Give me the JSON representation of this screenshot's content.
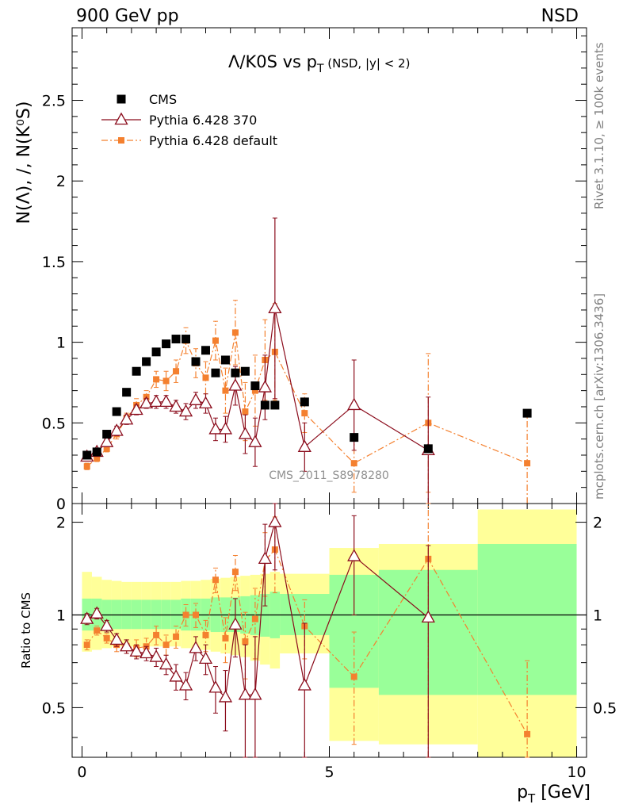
{
  "header": {
    "left": "900 GeV pp",
    "right": "NSD"
  },
  "side_labels": {
    "rivet": "Rivet 3.1.10, ≥ 100k events",
    "mcplots": "mcplots.cern.ch [arXiv:1306.3436]"
  },
  "watermark": "CMS_2011_S8978280",
  "main_title": {
    "part1": "Λ/K0S vs p",
    "sub": "T",
    "part2": " (NSD, |y| < 2)"
  },
  "y_label_main": "N(Λ), /, N(K⁰S)",
  "y_label_ratio": "Ratio to CMS",
  "x_label": {
    "main": "p",
    "sub": "T",
    "rest": " [GeV]"
  },
  "colors": {
    "data": "#000000",
    "pythia370": "#8b0c1c",
    "pythiadefault": "#f4802f",
    "band_inner": "#99ff99",
    "band_outer": "#ffff99"
  },
  "chart_data": [
    {
      "type": "scatter",
      "panel": "main",
      "title": "Λ/K0S vs pT (NSD, |y| < 2)",
      "xlabel": "pT [GeV]",
      "ylabel": "N(Λ), /, N(K0S)",
      "xlim": [
        -0.2,
        10.2
      ],
      "ylim": [
        0,
        2.95
      ],
      "y_ticks": [
        0,
        0.5,
        1,
        1.5,
        2,
        2.5
      ],
      "y_tick_labels": [
        "0",
        "0.5",
        "1",
        "1.5",
        "2",
        "2.5"
      ],
      "legend_position": "top-left",
      "series": [
        {
          "name": "CMS",
          "style": "data",
          "x": [
            0.1,
            0.3,
            0.5,
            0.7,
            0.9,
            1.1,
            1.3,
            1.5,
            1.7,
            1.9,
            2.1,
            2.3,
            2.5,
            2.7,
            2.9,
            3.1,
            3.3,
            3.5,
            3.7,
            3.9,
            4.5,
            5.5,
            7.0,
            9.0
          ],
          "values": [
            0.3,
            0.32,
            0.43,
            0.57,
            0.69,
            0.82,
            0.88,
            0.94,
            0.99,
            1.02,
            1.02,
            0.88,
            0.95,
            0.81,
            0.89,
            0.81,
            0.82,
            0.73,
            0.61,
            0.61,
            0.63,
            0.41,
            0.34,
            0.56
          ]
        },
        {
          "name": "Pythia 6.428 370",
          "style": "pythia370",
          "x": [
            0.1,
            0.3,
            0.5,
            0.7,
            0.9,
            1.1,
            1.3,
            1.5,
            1.7,
            1.9,
            2.1,
            2.3,
            2.5,
            2.7,
            2.9,
            3.1,
            3.3,
            3.5,
            3.7,
            3.9,
            4.5,
            5.5,
            7.0
          ],
          "values": [
            0.29,
            0.32,
            0.38,
            0.45,
            0.52,
            0.58,
            0.62,
            0.63,
            0.63,
            0.6,
            0.57,
            0.64,
            0.62,
            0.46,
            0.46,
            0.73,
            0.43,
            0.38,
            0.72,
            1.21,
            0.35,
            0.61,
            0.33
          ],
          "errors": [
            0.02,
            0.02,
            0.02,
            0.03,
            0.03,
            0.03,
            0.03,
            0.04,
            0.04,
            0.04,
            0.05,
            0.05,
            0.06,
            0.07,
            0.08,
            0.12,
            0.12,
            0.15,
            0.2,
            0.56,
            0.15,
            0.28,
            0.33
          ]
        },
        {
          "name": "Pythia 6.428 default",
          "style": "pythiadefault",
          "x": [
            0.1,
            0.3,
            0.5,
            0.7,
            0.9,
            1.1,
            1.3,
            1.5,
            1.7,
            1.9,
            2.1,
            2.3,
            2.5,
            2.7,
            2.9,
            3.1,
            3.3,
            3.5,
            3.7,
            3.9,
            4.5,
            5.5,
            7.0,
            9.0
          ],
          "values": [
            0.23,
            0.28,
            0.34,
            0.43,
            0.53,
            0.61,
            0.66,
            0.77,
            0.76,
            0.82,
            1.01,
            0.87,
            0.78,
            1.01,
            0.7,
            1.06,
            0.57,
            0.7,
            0.89,
            0.94,
            0.56,
            0.25,
            0.5,
            0.25
          ],
          "errors": [
            0.02,
            0.02,
            0.02,
            0.03,
            0.03,
            0.04,
            0.04,
            0.05,
            0.06,
            0.07,
            0.08,
            0.09,
            0.1,
            0.12,
            0.14,
            0.2,
            0.18,
            0.22,
            0.25,
            0.3,
            0.12,
            0.18,
            0.43,
            0.3
          ]
        }
      ]
    },
    {
      "type": "scatter",
      "panel": "ratio",
      "ylabel": "Ratio to CMS",
      "xlabel": "pT [GeV]",
      "xlim": [
        -0.2,
        10.2
      ],
      "ylim": [
        0.345,
        2.3
      ],
      "y_scale": "log",
      "y_ticks": [
        0.5,
        1,
        2
      ],
      "y_tick_labels": [
        "0.5",
        "1",
        "2"
      ],
      "x_ticks": [
        0,
        5,
        10
      ],
      "x_tick_labels": [
        "0",
        "5",
        "10"
      ],
      "reference_line": 1,
      "bands": {
        "edges": [
          0,
          0.2,
          0.4,
          0.6,
          0.8,
          1.0,
          1.2,
          1.4,
          1.6,
          1.8,
          2.0,
          2.2,
          2.4,
          2.6,
          2.8,
          3.0,
          3.2,
          3.4,
          3.6,
          3.8,
          4.0,
          5.0,
          6.0,
          8.0,
          10.0
        ],
        "inner_lo": [
          0.89,
          0.89,
          0.9,
          0.9,
          0.9,
          0.9,
          0.9,
          0.9,
          0.9,
          0.9,
          0.89,
          0.89,
          0.89,
          0.88,
          0.88,
          0.88,
          0.87,
          0.86,
          0.85,
          0.84,
          0.86,
          0.58,
          0.55,
          0.55
        ],
        "inner_hi": [
          1.13,
          1.13,
          1.12,
          1.12,
          1.12,
          1.12,
          1.12,
          1.12,
          1.12,
          1.12,
          1.13,
          1.13,
          1.13,
          1.14,
          1.14,
          1.14,
          1.15,
          1.16,
          1.17,
          1.19,
          1.17,
          1.35,
          1.4,
          1.7
        ],
        "outer_lo": [
          0.76,
          0.77,
          0.78,
          0.79,
          0.79,
          0.79,
          0.79,
          0.79,
          0.79,
          0.79,
          0.78,
          0.78,
          0.77,
          0.76,
          0.75,
          0.74,
          0.73,
          0.71,
          0.69,
          0.67,
          0.75,
          0.39,
          0.38,
          0.34
        ],
        "outer_hi": [
          1.38,
          1.33,
          1.3,
          1.29,
          1.28,
          1.28,
          1.28,
          1.28,
          1.28,
          1.28,
          1.29,
          1.29,
          1.3,
          1.31,
          1.32,
          1.33,
          1.34,
          1.35,
          1.36,
          1.38,
          1.36,
          1.65,
          1.7,
          2.2
        ]
      },
      "series": [
        {
          "name": "Pythia 6.428 370",
          "style": "pythia370",
          "x": [
            0.1,
            0.3,
            0.5,
            0.7,
            0.9,
            1.1,
            1.3,
            1.5,
            1.7,
            1.9,
            2.1,
            2.3,
            2.5,
            2.7,
            2.9,
            3.1,
            3.3,
            3.5,
            3.7,
            3.9,
            4.5,
            5.5,
            7.0
          ],
          "values": [
            0.97,
            1.01,
            0.92,
            0.83,
            0.79,
            0.76,
            0.75,
            0.73,
            0.69,
            0.63,
            0.59,
            0.78,
            0.72,
            0.58,
            0.54,
            0.93,
            0.55,
            0.55,
            1.52,
            2.0,
            0.59,
            1.55,
            0.98
          ],
          "errors": [
            0.04,
            0.04,
            0.04,
            0.04,
            0.04,
            0.04,
            0.04,
            0.05,
            0.05,
            0.06,
            0.06,
            0.07,
            0.08,
            0.1,
            0.12,
            0.2,
            0.25,
            0.3,
            0.45,
            0.6,
            0.35,
            0.55,
            0.7
          ]
        },
        {
          "name": "Pythia 6.428 default",
          "style": "pythiadefault",
          "x": [
            0.1,
            0.3,
            0.5,
            0.7,
            0.9,
            1.1,
            1.3,
            1.5,
            1.7,
            1.9,
            2.1,
            2.3,
            2.5,
            2.7,
            2.9,
            3.1,
            3.3,
            3.5,
            3.7,
            3.9,
            4.5,
            5.5,
            7.0,
            9.0
          ],
          "values": [
            0.8,
            0.89,
            0.84,
            0.8,
            0.79,
            0.78,
            0.79,
            0.86,
            0.8,
            0.85,
            1.0,
            1.0,
            0.86,
            1.3,
            0.84,
            1.38,
            0.82,
            0.97,
            1.5,
            1.63,
            0.92,
            0.63,
            1.52,
            0.41
          ],
          "errors": [
            0.03,
            0.03,
            0.03,
            0.04,
            0.04,
            0.05,
            0.05,
            0.06,
            0.06,
            0.07,
            0.08,
            0.09,
            0.1,
            0.12,
            0.14,
            0.18,
            0.2,
            0.25,
            0.35,
            0.45,
            0.2,
            0.25,
            1.2,
            0.3
          ]
        }
      ]
    }
  ]
}
